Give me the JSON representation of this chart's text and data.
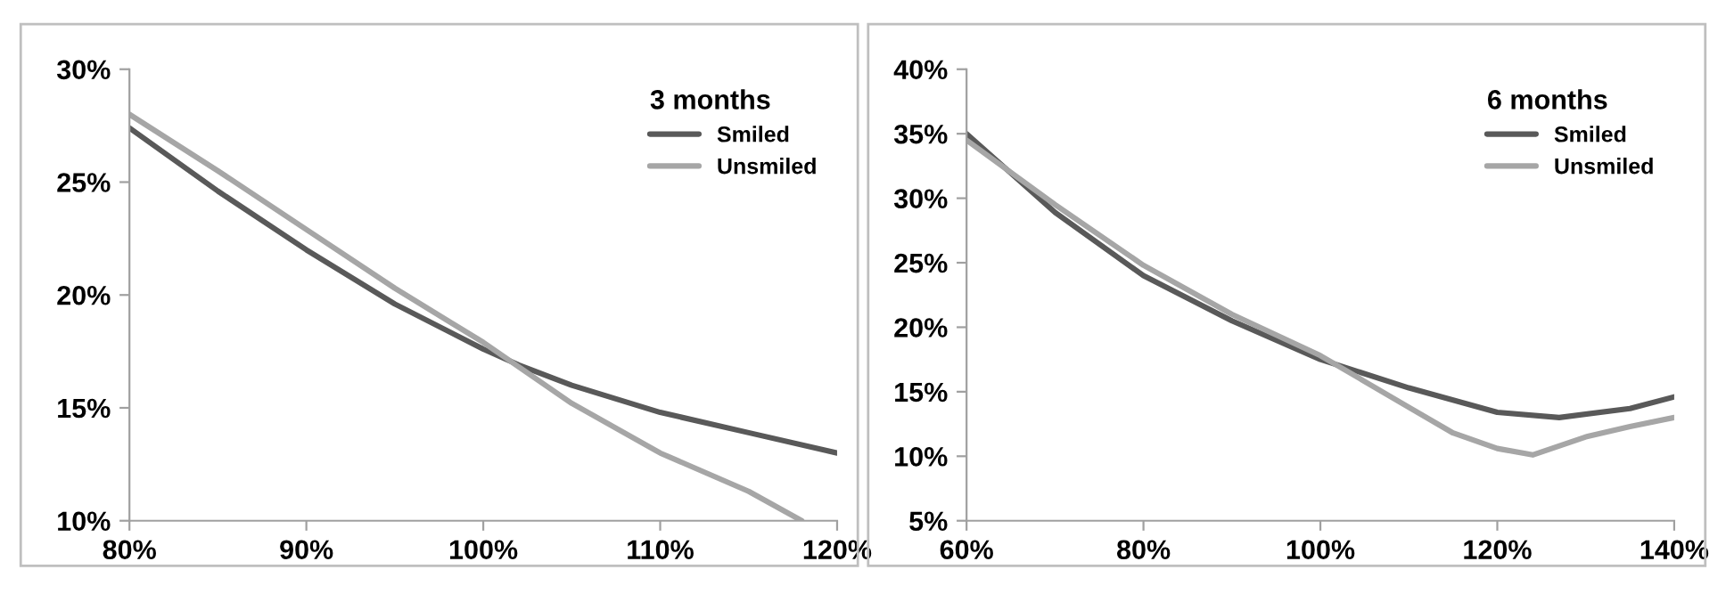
{
  "chart_data": [
    {
      "type": "line",
      "legend_title": "3 months",
      "legend": "top right",
      "grid": false,
      "xlim": [
        80,
        120
      ],
      "xticks": [
        {
          "value": 80,
          "label": "80%"
        },
        {
          "value": 90,
          "label": "90%"
        },
        {
          "value": 100,
          "label": "100%"
        },
        {
          "value": 110,
          "label": "110%"
        },
        {
          "value": 120,
          "label": "120%"
        }
      ],
      "ylim": [
        10,
        30
      ],
      "yticks": [
        {
          "value": 10,
          "label": "10%"
        },
        {
          "value": 15,
          "label": "15%"
        },
        {
          "value": 20,
          "label": "20%"
        },
        {
          "value": 25,
          "label": "25%"
        },
        {
          "value": 30,
          "label": "30%"
        }
      ],
      "series": [
        {
          "name": "Smiled",
          "color": "#595959",
          "x": [
            80,
            85,
            90,
            95,
            100,
            102,
            105,
            110,
            115,
            120
          ],
          "values": [
            27.4,
            24.6,
            22.0,
            19.6,
            17.6,
            16.9,
            16.0,
            14.8,
            13.9,
            13.0
          ]
        },
        {
          "name": "Unsmiled",
          "color": "#a6a6a6",
          "x": [
            80,
            85,
            90,
            95,
            100,
            105,
            110,
            115,
            118
          ],
          "values": [
            28.0,
            25.5,
            22.9,
            20.3,
            17.9,
            15.2,
            13.0,
            11.3,
            10.0
          ]
        }
      ]
    },
    {
      "type": "line",
      "legend_title": "6 months",
      "legend": "top right",
      "grid": false,
      "xlim": [
        60,
        140
      ],
      "xticks": [
        {
          "value": 60,
          "label": "60%"
        },
        {
          "value": 80,
          "label": "80%"
        },
        {
          "value": 100,
          "label": "100%"
        },
        {
          "value": 120,
          "label": "120%"
        },
        {
          "value": 140,
          "label": "140%"
        }
      ],
      "ylim": [
        5,
        40
      ],
      "yticks": [
        {
          "value": 5,
          "label": "5%"
        },
        {
          "value": 10,
          "label": "10%"
        },
        {
          "value": 15,
          "label": "15%"
        },
        {
          "value": 20,
          "label": "20%"
        },
        {
          "value": 25,
          "label": "25%"
        },
        {
          "value": 30,
          "label": "30%"
        },
        {
          "value": 35,
          "label": "35%"
        },
        {
          "value": 40,
          "label": "40%"
        }
      ],
      "series": [
        {
          "name": "Smiled",
          "color": "#595959",
          "x": [
            60,
            70,
            80,
            90,
            100,
            110,
            120,
            127,
            135,
            140
          ],
          "values": [
            35.0,
            28.9,
            24.0,
            20.5,
            17.5,
            15.3,
            13.4,
            13.0,
            13.7,
            14.6
          ]
        },
        {
          "name": "Unsmiled",
          "color": "#a6a6a6",
          "x": [
            60,
            70,
            80,
            90,
            100,
            105,
            110,
            115,
            120,
            124,
            130,
            135,
            140
          ],
          "values": [
            34.5,
            29.5,
            24.8,
            21.0,
            17.8,
            15.8,
            13.8,
            11.8,
            10.6,
            10.1,
            11.5,
            12.3,
            13.0
          ]
        }
      ]
    }
  ]
}
